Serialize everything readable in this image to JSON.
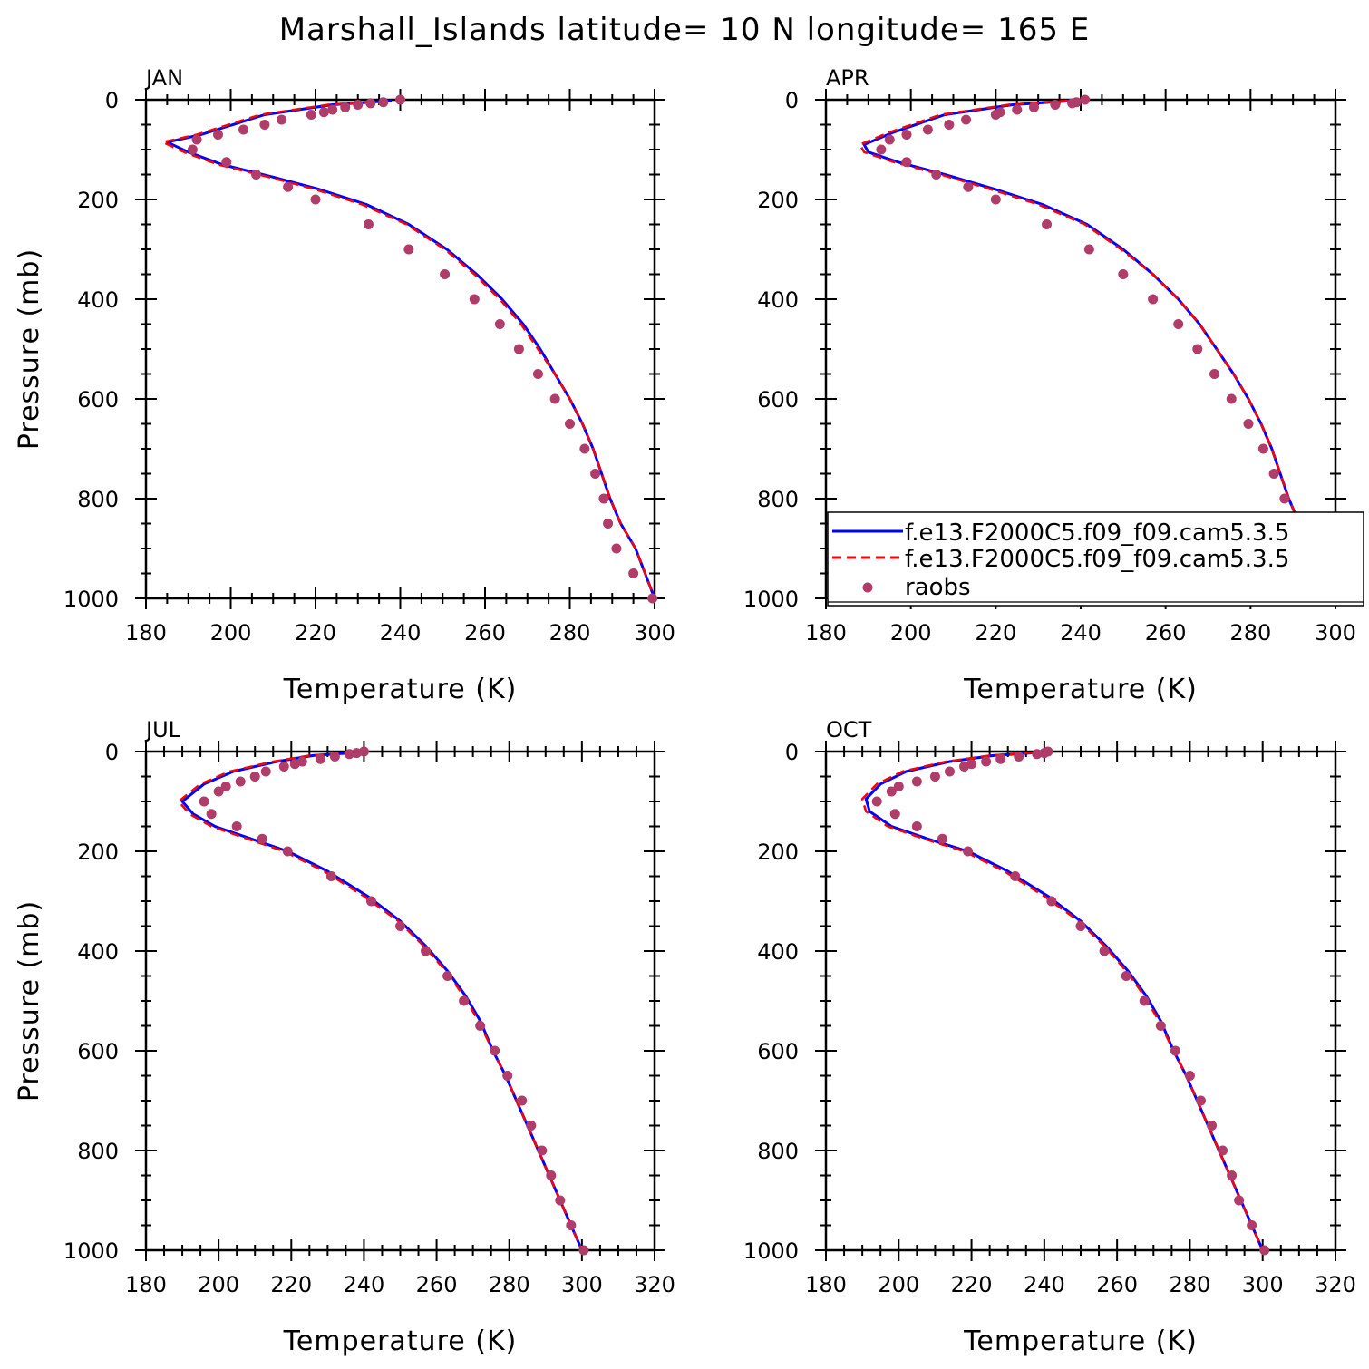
{
  "title": "Marshall_Islands   latitude=  10 N longitude=  165 E",
  "legend": {
    "entries": [
      {
        "label": "f.e13.F2000C5.f09_f09.cam5.3.5",
        "style": "solid",
        "color": "#0000ff"
      },
      {
        "label": "f.e13.F2000C5.f09_f09.cam5.3.5",
        "style": "dashed",
        "color": "#ff0000"
      },
      {
        "label": "raobs",
        "style": "marker",
        "color": "#b03c6a"
      }
    ]
  },
  "chart_data": [
    {
      "type": "line",
      "panel": "JAN",
      "xlabel": "Temperature (K)",
      "ylabel": "Pressure (mb)",
      "xlim": [
        180,
        300
      ],
      "ylim": [
        1000,
        0
      ],
      "xticks": [
        "180",
        "200",
        "220",
        "240",
        "260",
        "280",
        "300"
      ],
      "yticks": [
        "0",
        "200",
        "400",
        "600",
        "800",
        "1000"
      ],
      "series": [
        {
          "name": "f.e13.F2000C5.f09_f09.cam5.3.5",
          "style": "solid",
          "color": "#0000ff",
          "x": [
            238,
            224,
            208,
            193,
            185,
            190,
            198,
            210,
            221,
            232,
            242,
            251,
            258,
            264,
            269,
            273,
            276.5,
            280,
            283,
            285.5,
            287.5,
            289.5,
            292,
            295.5,
            300
          ],
          "y": [
            2,
            10,
            30,
            70,
            85,
            105,
            130,
            155,
            180,
            210,
            250,
            300,
            350,
            400,
            450,
            500,
            550,
            600,
            650,
            700,
            750,
            800,
            850,
            900,
            1000
          ]
        },
        {
          "name": "f.e13.F2000C5.f09_f09.cam5.3.5",
          "style": "dashed",
          "color": "#ff0000",
          "x": [
            237,
            223,
            207,
            192,
            184,
            189,
            197,
            209,
            220,
            231,
            241.5,
            250.5,
            257.5,
            263.5,
            268.5,
            272.5,
            276.5,
            280,
            283,
            285.5,
            287.5,
            289.5,
            292,
            295.5,
            300
          ],
          "y": [
            2,
            10,
            30,
            70,
            85,
            105,
            130,
            155,
            180,
            210,
            250,
            300,
            350,
            400,
            450,
            500,
            550,
            600,
            650,
            700,
            750,
            800,
            850,
            900,
            1000
          ]
        },
        {
          "name": "raobs",
          "style": "marker",
          "color": "#b03c6a",
          "x": [
            240,
            236,
            233,
            230,
            227,
            224,
            222,
            219,
            212,
            208,
            203,
            197,
            192,
            191,
            199,
            206,
            213.5,
            220,
            232.5,
            242,
            250.5,
            257.5,
            263.5,
            268,
            272.5,
            276.5,
            280,
            283.5,
            286,
            288,
            289,
            291,
            295,
            299.5
          ],
          "y": [
            0,
            5,
            7,
            10,
            15,
            20,
            25,
            30,
            40,
            50,
            60,
            70,
            80,
            100,
            125,
            150,
            175,
            200,
            250,
            300,
            350,
            400,
            450,
            500,
            550,
            600,
            650,
            700,
            750,
            800,
            850,
            900,
            950,
            1000
          ]
        }
      ]
    },
    {
      "type": "line",
      "panel": "APR",
      "xlabel": "Temperature (K)",
      "ylabel": "",
      "xlim": [
        180,
        300
      ],
      "ylim": [
        1000,
        0
      ],
      "xticks": [
        "180",
        "200",
        "220",
        "240",
        "260",
        "280",
        "300"
      ],
      "yticks": [
        "0",
        "200",
        "400",
        "600",
        "800",
        "1000"
      ],
      "series": [
        {
          "name": "f.e13.F2000C5.f09_f09.cam5.3.5",
          "style": "solid",
          "color": "#0000ff",
          "x": [
            238,
            224,
            208,
            196,
            189,
            190,
            197,
            208,
            220,
            231,
            241.5,
            250,
            257,
            263,
            268,
            272,
            276,
            279.5,
            282.5,
            285,
            287,
            289,
            291.5,
            295,
            300
          ],
          "y": [
            2,
            10,
            30,
            65,
            90,
            105,
            125,
            150,
            180,
            210,
            250,
            300,
            350,
            400,
            450,
            500,
            550,
            600,
            650,
            700,
            750,
            800,
            850,
            900,
            1000
          ]
        },
        {
          "name": "f.e13.F2000C5.f09_f09.cam5.3.5",
          "style": "dashed",
          "color": "#ff0000",
          "x": [
            237,
            223,
            207,
            195,
            188,
            189,
            196,
            207,
            219,
            230,
            241,
            249.5,
            257,
            263,
            268,
            272,
            276,
            279.5,
            282.5,
            285,
            287,
            289,
            291.5,
            295,
            300
          ],
          "y": [
            2,
            10,
            30,
            65,
            90,
            105,
            125,
            150,
            180,
            210,
            250,
            300,
            350,
            400,
            450,
            500,
            550,
            600,
            650,
            700,
            750,
            800,
            850,
            900,
            1000
          ]
        },
        {
          "name": "raobs",
          "style": "marker",
          "color": "#b03c6a",
          "x": [
            241,
            239,
            238,
            234,
            229,
            225,
            221,
            220,
            213,
            209,
            204,
            199,
            195,
            193,
            199,
            206,
            213.5,
            220,
            232,
            242,
            250,
            257,
            263,
            267.5,
            271.5,
            275.5,
            279.5,
            283,
            285.5,
            288,
            290,
            292,
            294.5,
            300
          ],
          "y": [
            0,
            5,
            7,
            10,
            15,
            20,
            25,
            30,
            40,
            50,
            60,
            70,
            80,
            100,
            125,
            150,
            175,
            200,
            250,
            300,
            350,
            400,
            450,
            500,
            550,
            600,
            650,
            700,
            750,
            800,
            850,
            900,
            950,
            1000
          ]
        }
      ]
    },
    {
      "type": "line",
      "panel": "JUL",
      "xlabel": "Temperature (K)",
      "ylabel": "Pressure (mb)",
      "xlim": [
        180,
        320
      ],
      "ylim": [
        1000,
        0
      ],
      "xticks": [
        "180",
        "200",
        "220",
        "240",
        "260",
        "280",
        "300",
        "320"
      ],
      "yticks": [
        "0",
        "200",
        "400",
        "600",
        "800",
        "1000"
      ],
      "series": [
        {
          "name": "f.e13.F2000C5.f09_f09.cam5.3.5",
          "style": "solid",
          "color": "#0000ff",
          "x": [
            238,
            226,
            216,
            204,
            196,
            190,
            193,
            199,
            209,
            219,
            230,
            241,
            250,
            257,
            263,
            268,
            272,
            275.5,
            279,
            282,
            285,
            288,
            291,
            294,
            297,
            300
          ],
          "y": [
            2,
            8,
            20,
            40,
            65,
            100,
            125,
            150,
            175,
            200,
            240,
            290,
            340,
            390,
            440,
            490,
            540,
            600,
            650,
            700,
            750,
            800,
            850,
            900,
            950,
            1000
          ]
        },
        {
          "name": "f.e13.F2000C5.f09_f09.cam5.3.5",
          "style": "dashed",
          "color": "#ff0000",
          "x": [
            237,
            225,
            215,
            203,
            195,
            189,
            192,
            198,
            208,
            218,
            229,
            240,
            249.5,
            256.5,
            262.5,
            267.5,
            271.5,
            275.5,
            279,
            282,
            285,
            288,
            291,
            294,
            297,
            300
          ],
          "y": [
            2,
            8,
            20,
            40,
            65,
            100,
            125,
            150,
            175,
            200,
            240,
            290,
            340,
            390,
            440,
            490,
            540,
            600,
            650,
            700,
            750,
            800,
            850,
            900,
            950,
            1000
          ]
        },
        {
          "name": "raobs",
          "style": "marker",
          "color": "#b03c6a",
          "x": [
            240,
            238,
            236,
            232,
            228,
            223,
            221,
            218,
            213,
            210,
            206,
            202,
            200,
            196,
            198,
            205,
            212,
            219,
            231,
            242,
            250,
            257,
            263,
            267.5,
            272,
            276,
            279.5,
            283.5,
            286,
            289,
            291.5,
            294,
            297,
            300.5
          ],
          "y": [
            0,
            3,
            5,
            10,
            15,
            20,
            25,
            30,
            40,
            50,
            60,
            70,
            80,
            100,
            125,
            150,
            175,
            200,
            250,
            300,
            350,
            400,
            450,
            500,
            550,
            600,
            650,
            700,
            750,
            800,
            850,
            900,
            950,
            1000
          ]
        }
      ]
    },
    {
      "type": "line",
      "panel": "OCT",
      "xlabel": "Temperature (K)",
      "ylabel": "",
      "xlim": [
        180,
        320
      ],
      "ylim": [
        1000,
        0
      ],
      "xticks": [
        "180",
        "200",
        "220",
        "240",
        "260",
        "280",
        "300",
        "320"
      ],
      "yticks": [
        "0",
        "200",
        "400",
        "600",
        "800",
        "1000"
      ],
      "series": [
        {
          "name": "f.e13.F2000C5.f09_f09.cam5.3.5",
          "style": "solid",
          "color": "#0000ff",
          "x": [
            238,
            226,
            214,
            202,
            195,
            191,
            192,
            198,
            208,
            219,
            230,
            241,
            250,
            257,
            263,
            268,
            272,
            275.5,
            279,
            282,
            285,
            288,
            291,
            294,
            297,
            300
          ],
          "y": [
            2,
            8,
            20,
            40,
            65,
            95,
            120,
            150,
            175,
            200,
            240,
            290,
            340,
            390,
            440,
            490,
            540,
            600,
            650,
            700,
            750,
            800,
            850,
            900,
            950,
            1000
          ]
        },
        {
          "name": "f.e13.F2000C5.f09_f09.cam5.3.5",
          "style": "dashed",
          "color": "#ff0000",
          "x": [
            237,
            225,
            213,
            201,
            194,
            190,
            191,
            197,
            207,
            218,
            229,
            240,
            249.5,
            256.5,
            262.5,
            267.5,
            271.5,
            275.5,
            279,
            282,
            285,
            288,
            291,
            294,
            297,
            300
          ],
          "y": [
            2,
            8,
            20,
            40,
            65,
            95,
            120,
            150,
            175,
            200,
            240,
            290,
            340,
            390,
            440,
            490,
            540,
            600,
            650,
            700,
            750,
            800,
            850,
            900,
            950,
            1000
          ]
        },
        {
          "name": "raobs",
          "style": "marker",
          "color": "#b03c6a",
          "x": [
            241,
            240,
            238,
            233,
            228,
            224,
            220,
            218,
            214,
            210,
            205,
            200,
            198,
            194,
            199,
            205,
            212,
            219,
            232,
            242,
            250,
            256.5,
            262.5,
            267.5,
            272,
            276,
            280,
            283,
            286,
            289,
            291.5,
            293.5,
            297,
            300.5
          ],
          "y": [
            0,
            3,
            5,
            10,
            15,
            20,
            25,
            30,
            40,
            50,
            60,
            70,
            80,
            100,
            125,
            150,
            175,
            200,
            250,
            300,
            350,
            400,
            450,
            500,
            550,
            600,
            650,
            700,
            750,
            800,
            850,
            900,
            950,
            1000
          ]
        }
      ]
    }
  ]
}
